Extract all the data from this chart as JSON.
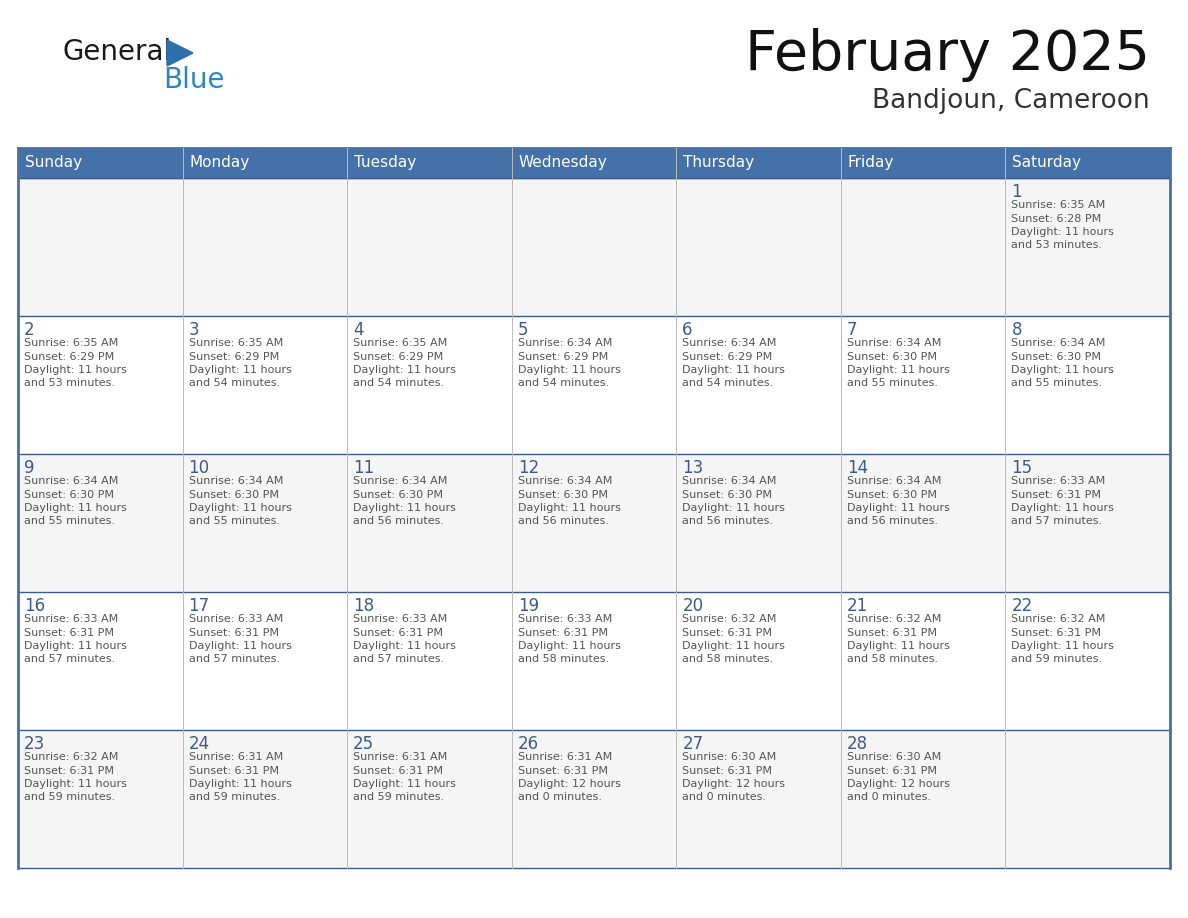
{
  "title": "February 2025",
  "subtitle": "Bandjoun, Cameroon",
  "header_bg": "#4472A8",
  "header_text_color": "#FFFFFF",
  "cell_bg_odd": "#F5F5F5",
  "cell_bg_even": "#FFFFFF",
  "row_border_color": "#3D5A8A",
  "col_border_color": "#BBBBBB",
  "outer_border_color": "#4472A8",
  "day_number_color": "#3D5A8A",
  "cell_text_color": "#555555",
  "days_of_week": [
    "Sunday",
    "Monday",
    "Tuesday",
    "Wednesday",
    "Thursday",
    "Friday",
    "Saturday"
  ],
  "calendar_data": [
    [
      null,
      null,
      null,
      null,
      null,
      null,
      {
        "day": 1,
        "sunrise": "6:35 AM",
        "sunset": "6:28 PM",
        "daylight_line1": "Daylight: 11 hours",
        "daylight_line2": "and 53 minutes."
      }
    ],
    [
      {
        "day": 2,
        "sunrise": "6:35 AM",
        "sunset": "6:29 PM",
        "daylight_line1": "Daylight: 11 hours",
        "daylight_line2": "and 53 minutes."
      },
      {
        "day": 3,
        "sunrise": "6:35 AM",
        "sunset": "6:29 PM",
        "daylight_line1": "Daylight: 11 hours",
        "daylight_line2": "and 54 minutes."
      },
      {
        "day": 4,
        "sunrise": "6:35 AM",
        "sunset": "6:29 PM",
        "daylight_line1": "Daylight: 11 hours",
        "daylight_line2": "and 54 minutes."
      },
      {
        "day": 5,
        "sunrise": "6:34 AM",
        "sunset": "6:29 PM",
        "daylight_line1": "Daylight: 11 hours",
        "daylight_line2": "and 54 minutes."
      },
      {
        "day": 6,
        "sunrise": "6:34 AM",
        "sunset": "6:29 PM",
        "daylight_line1": "Daylight: 11 hours",
        "daylight_line2": "and 54 minutes."
      },
      {
        "day": 7,
        "sunrise": "6:34 AM",
        "sunset": "6:30 PM",
        "daylight_line1": "Daylight: 11 hours",
        "daylight_line2": "and 55 minutes."
      },
      {
        "day": 8,
        "sunrise": "6:34 AM",
        "sunset": "6:30 PM",
        "daylight_line1": "Daylight: 11 hours",
        "daylight_line2": "and 55 minutes."
      }
    ],
    [
      {
        "day": 9,
        "sunrise": "6:34 AM",
        "sunset": "6:30 PM",
        "daylight_line1": "Daylight: 11 hours",
        "daylight_line2": "and 55 minutes."
      },
      {
        "day": 10,
        "sunrise": "6:34 AM",
        "sunset": "6:30 PM",
        "daylight_line1": "Daylight: 11 hours",
        "daylight_line2": "and 55 minutes."
      },
      {
        "day": 11,
        "sunrise": "6:34 AM",
        "sunset": "6:30 PM",
        "daylight_line1": "Daylight: 11 hours",
        "daylight_line2": "and 56 minutes."
      },
      {
        "day": 12,
        "sunrise": "6:34 AM",
        "sunset": "6:30 PM",
        "daylight_line1": "Daylight: 11 hours",
        "daylight_line2": "and 56 minutes."
      },
      {
        "day": 13,
        "sunrise": "6:34 AM",
        "sunset": "6:30 PM",
        "daylight_line1": "Daylight: 11 hours",
        "daylight_line2": "and 56 minutes."
      },
      {
        "day": 14,
        "sunrise": "6:34 AM",
        "sunset": "6:30 PM",
        "daylight_line1": "Daylight: 11 hours",
        "daylight_line2": "and 56 minutes."
      },
      {
        "day": 15,
        "sunrise": "6:33 AM",
        "sunset": "6:31 PM",
        "daylight_line1": "Daylight: 11 hours",
        "daylight_line2": "and 57 minutes."
      }
    ],
    [
      {
        "day": 16,
        "sunrise": "6:33 AM",
        "sunset": "6:31 PM",
        "daylight_line1": "Daylight: 11 hours",
        "daylight_line2": "and 57 minutes."
      },
      {
        "day": 17,
        "sunrise": "6:33 AM",
        "sunset": "6:31 PM",
        "daylight_line1": "Daylight: 11 hours",
        "daylight_line2": "and 57 minutes."
      },
      {
        "day": 18,
        "sunrise": "6:33 AM",
        "sunset": "6:31 PM",
        "daylight_line1": "Daylight: 11 hours",
        "daylight_line2": "and 57 minutes."
      },
      {
        "day": 19,
        "sunrise": "6:33 AM",
        "sunset": "6:31 PM",
        "daylight_line1": "Daylight: 11 hours",
        "daylight_line2": "and 58 minutes."
      },
      {
        "day": 20,
        "sunrise": "6:32 AM",
        "sunset": "6:31 PM",
        "daylight_line1": "Daylight: 11 hours",
        "daylight_line2": "and 58 minutes."
      },
      {
        "day": 21,
        "sunrise": "6:32 AM",
        "sunset": "6:31 PM",
        "daylight_line1": "Daylight: 11 hours",
        "daylight_line2": "and 58 minutes."
      },
      {
        "day": 22,
        "sunrise": "6:32 AM",
        "sunset": "6:31 PM",
        "daylight_line1": "Daylight: 11 hours",
        "daylight_line2": "and 59 minutes."
      }
    ],
    [
      {
        "day": 23,
        "sunrise": "6:32 AM",
        "sunset": "6:31 PM",
        "daylight_line1": "Daylight: 11 hours",
        "daylight_line2": "and 59 minutes."
      },
      {
        "day": 24,
        "sunrise": "6:31 AM",
        "sunset": "6:31 PM",
        "daylight_line1": "Daylight: 11 hours",
        "daylight_line2": "and 59 minutes."
      },
      {
        "day": 25,
        "sunrise": "6:31 AM",
        "sunset": "6:31 PM",
        "daylight_line1": "Daylight: 11 hours",
        "daylight_line2": "and 59 minutes."
      },
      {
        "day": 26,
        "sunrise": "6:31 AM",
        "sunset": "6:31 PM",
        "daylight_line1": "Daylight: 12 hours",
        "daylight_line2": "and 0 minutes."
      },
      {
        "day": 27,
        "sunrise": "6:30 AM",
        "sunset": "6:31 PM",
        "daylight_line1": "Daylight: 12 hours",
        "daylight_line2": "and 0 minutes."
      },
      {
        "day": 28,
        "sunrise": "6:30 AM",
        "sunset": "6:31 PM",
        "daylight_line1": "Daylight: 12 hours",
        "daylight_line2": "and 0 minutes."
      },
      null
    ]
  ],
  "logo_text_general": "General",
  "logo_text_blue": "Blue",
  "logo_color_general": "#1A1A1A",
  "logo_color_blue": "#2E86C1",
  "logo_triangle_color": "#2E6FAD"
}
